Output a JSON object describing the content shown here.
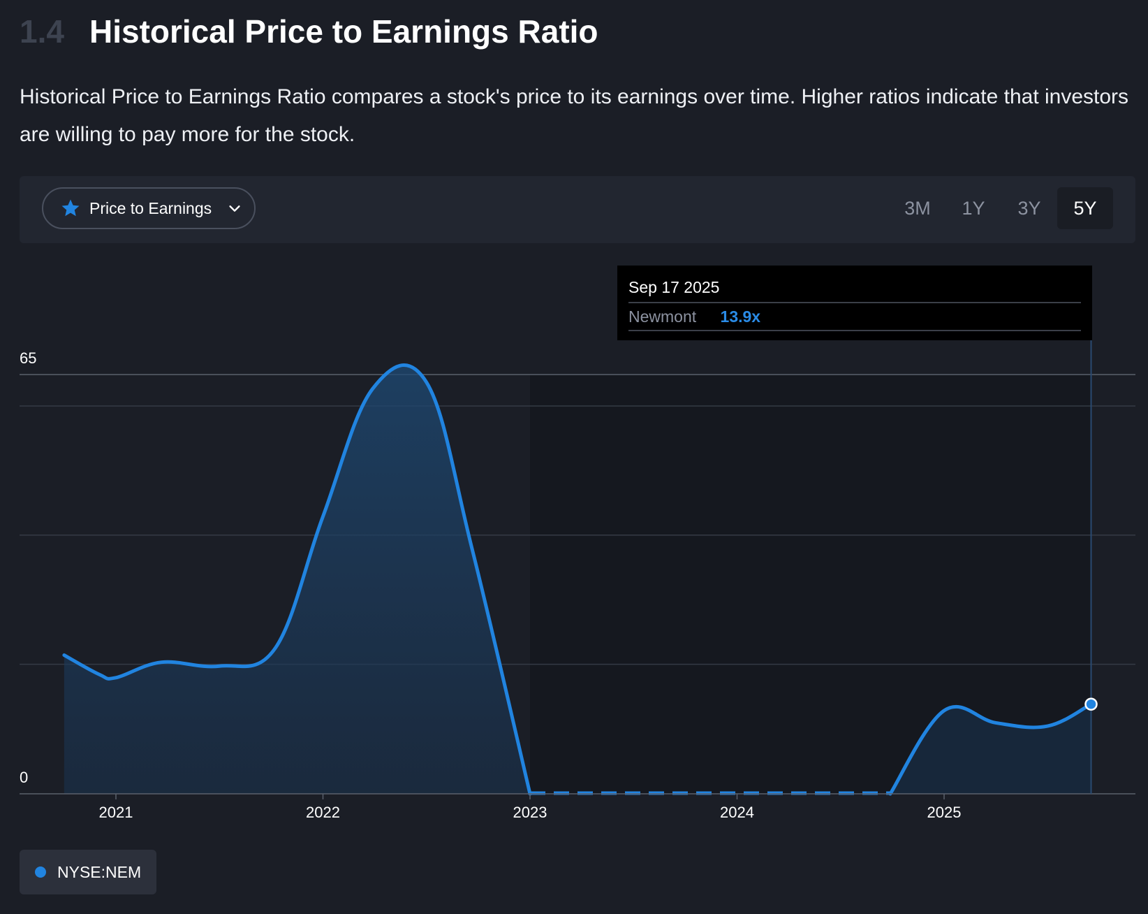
{
  "section": {
    "number": "1.4",
    "title": "Historical Price to Earnings Ratio"
  },
  "description": "Historical Price to Earnings Ratio compares a stock's price to its earnings over time. Higher ratios indicate that investors are willing to pay more for the stock.",
  "toolbar": {
    "metric_label": "Price to Earnings",
    "metric_icon": "star-icon",
    "ranges": [
      "3M",
      "1Y",
      "3Y",
      "5Y"
    ],
    "active_range": "5Y"
  },
  "tooltip": {
    "date": "Sep 17 2025",
    "series": "Newmont",
    "value": "13.9x"
  },
  "legend": {
    "label": "NYSE:NEM"
  },
  "colors": {
    "line": "#2184e0",
    "background": "#1b1e26",
    "panel": "#222630"
  },
  "chart_data": {
    "type": "area",
    "xlabel": "",
    "ylabel": "",
    "ylim": [
      0,
      65
    ],
    "y_ticks": [
      "65",
      "0"
    ],
    "x_ticks": [
      "2021",
      "2022",
      "2023",
      "2024",
      "2025"
    ],
    "series": [
      {
        "name": "Newmont",
        "points": [
          {
            "x": 2020.75,
            "y": 21.5
          },
          {
            "x": 2020.92,
            "y": 18.5
          },
          {
            "x": 2021.0,
            "y": 18.0
          },
          {
            "x": 2021.22,
            "y": 20.4
          },
          {
            "x": 2021.5,
            "y": 19.8
          },
          {
            "x": 2021.77,
            "y": 22.6
          },
          {
            "x": 2022.0,
            "y": 43.0
          },
          {
            "x": 2022.24,
            "y": 62.8
          },
          {
            "x": 2022.5,
            "y": 63.8
          },
          {
            "x": 2022.72,
            "y": 38.0
          },
          {
            "x": 2023.0,
            "y": 0
          },
          {
            "x": 2024.74,
            "y": 0
          },
          {
            "x": 2025.0,
            "y": 12.9
          },
          {
            "x": 2025.25,
            "y": 11.0
          },
          {
            "x": 2025.5,
            "y": 10.5
          },
          {
            "x": 2025.71,
            "y": 13.9
          }
        ],
        "no_data_range": [
          2023.0,
          2024.74
        ]
      }
    ],
    "highlight": {
      "date": "Sep 17 2025",
      "value": 13.9
    },
    "grid": true,
    "legend_position": "bottom-left"
  }
}
